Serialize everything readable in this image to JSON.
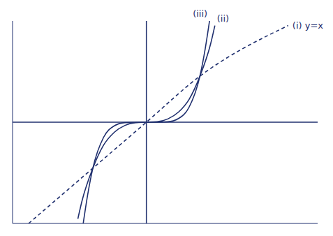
{
  "chart_data": {
    "type": "line",
    "tick_labels": false,
    "grid": false,
    "xlim": [
      -2.5,
      3.2
    ],
    "ylim": [
      -2.2,
      2.2
    ],
    "xticks": [
      0
    ],
    "yticks": [
      0
    ],
    "series": [
      {
        "name": "(i) y=x",
        "color": "#1f2f6e",
        "line_style": "dashed",
        "x": [
          -2.2,
          -1,
          0,
          1,
          2.65
        ],
        "values": [
          -2.2,
          -1,
          0,
          1,
          2.1
        ]
      },
      {
        "name": "(ii)",
        "color": "#1f2f6e",
        "line_style": "solid",
        "x": [
          -1.28,
          -1.2,
          -1,
          -0.8,
          -0.6,
          -0.4,
          -0.2,
          0,
          0.2,
          0.4,
          0.6,
          0.8,
          1,
          1.2,
          1.28
        ],
        "values": [
          -2.1,
          -1.7,
          -1,
          -0.5,
          -0.22,
          -0.07,
          -0.01,
          0,
          0.01,
          0.07,
          0.22,
          0.5,
          1,
          1.7,
          2.1
        ]
      },
      {
        "name": "(iii)",
        "color": "#1f2f6e",
        "line_style": "solid",
        "x": [
          -1.18,
          -1.1,
          -1,
          -0.8,
          -0.6,
          -0.4,
          0,
          0.4,
          0.6,
          0.8,
          1,
          1.1,
          1.18
        ],
        "values": [
          -2.2,
          -1.6,
          -1,
          -0.33,
          -0.08,
          -0.01,
          0,
          0.01,
          0.08,
          0.33,
          1,
          1.6,
          2.2
        ]
      }
    ]
  }
}
